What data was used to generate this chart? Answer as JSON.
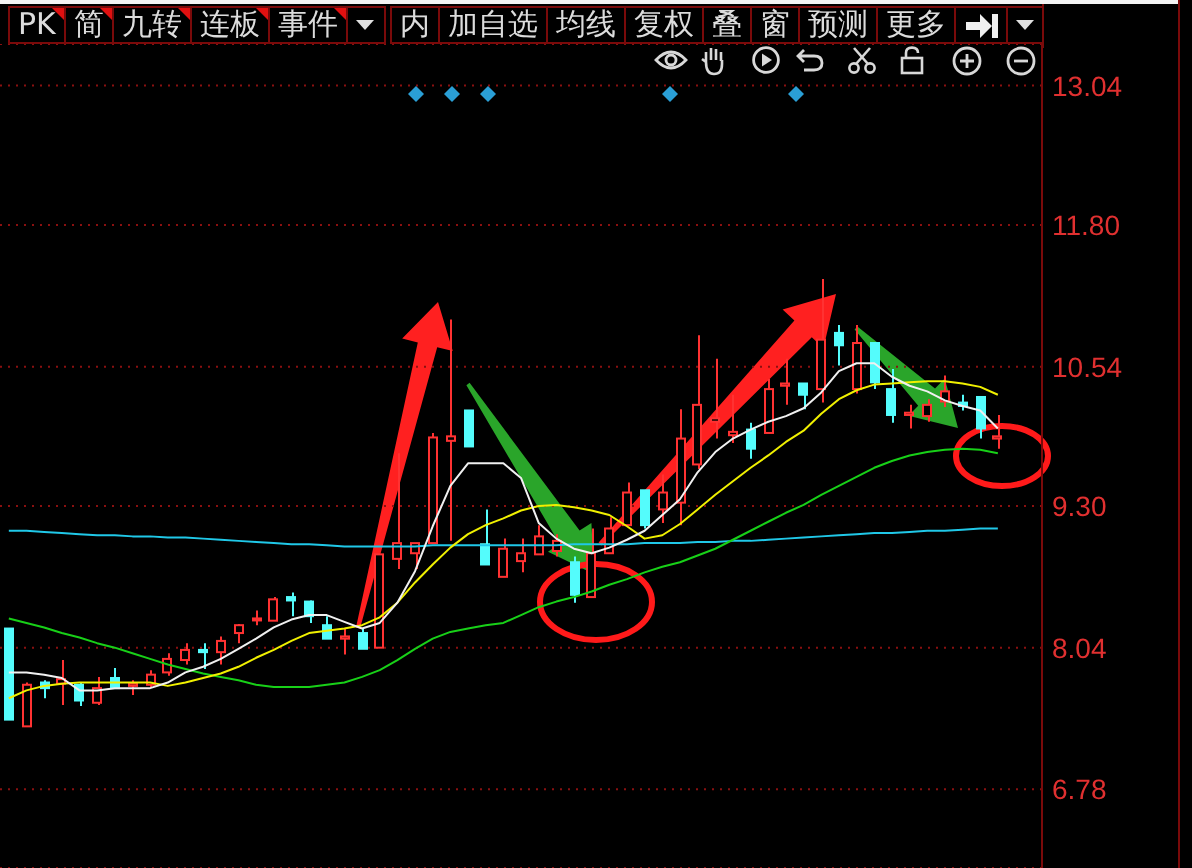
{
  "chart_data": {
    "type": "candlestick",
    "categories": [
      null,
      null,
      null,
      null,
      null,
      null,
      null,
      null,
      null,
      null,
      null,
      null,
      null,
      null,
      null,
      null,
      null,
      null,
      null,
      null,
      null,
      null,
      null,
      null,
      null,
      null,
      null,
      null,
      null,
      null,
      null,
      null,
      null,
      null,
      null,
      null,
      null,
      null,
      null,
      null,
      null,
      null,
      null,
      null,
      null,
      null,
      null,
      null,
      null,
      null,
      null,
      null,
      null,
      null,
      null,
      null,
      null,
      null,
      null
    ],
    "ohlc": [
      [
        8.21,
        8.21,
        7.4,
        7.4
      ],
      [
        7.34,
        7.73,
        7.34,
        7.71
      ],
      [
        7.73,
        7.75,
        7.59,
        7.68
      ],
      [
        7.72,
        7.93,
        7.53,
        7.76
      ],
      [
        7.71,
        7.73,
        7.52,
        7.57
      ],
      [
        7.55,
        7.78,
        7.53,
        7.68
      ],
      [
        7.77,
        7.86,
        7.68,
        7.68
      ],
      [
        7.7,
        7.75,
        7.62,
        7.72
      ],
      [
        7.71,
        7.84,
        7.69,
        7.8
      ],
      [
        7.82,
        7.99,
        7.79,
        7.94
      ],
      [
        7.93,
        8.08,
        7.89,
        8.02
      ],
      [
        8.02,
        8.08,
        7.85,
        8.0
      ],
      [
        8.0,
        8.14,
        7.89,
        8.1
      ],
      [
        8.17,
        8.25,
        8.08,
        8.24
      ],
      [
        8.29,
        8.37,
        8.24,
        8.3
      ],
      [
        8.28,
        8.49,
        8.28,
        8.47
      ],
      [
        8.49,
        8.53,
        8.32,
        8.46
      ],
      [
        8.45,
        8.46,
        8.26,
        8.32
      ],
      [
        8.24,
        8.32,
        8.12,
        8.12
      ],
      [
        8.12,
        8.21,
        7.98,
        8.14
      ],
      [
        8.17,
        8.21,
        8.03,
        8.03
      ],
      [
        8.04,
        8.87,
        8.04,
        8.87
      ],
      [
        8.83,
        9.77,
        8.74,
        8.97
      ],
      [
        8.88,
        8.97,
        8.74,
        8.97
      ],
      [
        8.97,
        9.95,
        8.97,
        9.91
      ],
      [
        9.88,
        10.96,
        8.99,
        9.92
      ],
      [
        10.15,
        10.15,
        9.83,
        9.83
      ],
      [
        8.96,
        9.27,
        8.78,
        8.78
      ],
      [
        8.67,
        9.01,
        8.67,
        8.92
      ],
      [
        8.81,
        9.01,
        8.71,
        8.88
      ],
      [
        8.87,
        9.13,
        8.87,
        9.03
      ],
      [
        8.9,
        9.05,
        8.85,
        8.99
      ],
      [
        8.8,
        8.85,
        8.44,
        8.51
      ],
      [
        8.49,
        9.1,
        8.49,
        8.88
      ],
      [
        8.88,
        9.2,
        8.88,
        9.1
      ],
      [
        9.13,
        9.51,
        9.13,
        9.42
      ],
      [
        9.44,
        9.44,
        9.1,
        9.13
      ],
      [
        9.27,
        9.58,
        9.15,
        9.42
      ],
      [
        9.33,
        10.16,
        9.13,
        9.9
      ],
      [
        9.67,
        10.82,
        9.63,
        10.2
      ],
      [
        10.05,
        10.61,
        9.9,
        10.08
      ],
      [
        9.93,
        10.29,
        9.86,
        9.96
      ],
      [
        9.98,
        10.04,
        9.72,
        9.81
      ],
      [
        9.95,
        10.43,
        9.95,
        10.34
      ],
      [
        10.37,
        10.61,
        10.2,
        10.39
      ],
      [
        10.39,
        10.39,
        10.16,
        10.29
      ],
      [
        10.34,
        11.32,
        10.22,
        10.78
      ],
      [
        10.84,
        10.91,
        10.55,
        10.73
      ],
      [
        10.34,
        10.91,
        10.3,
        10.75
      ],
      [
        10.75,
        10.75,
        10.34,
        10.4
      ],
      [
        10.34,
        10.52,
        10.04,
        10.11
      ],
      [
        10.11,
        10.2,
        9.99,
        10.13
      ],
      [
        10.1,
        10.25,
        10.05,
        10.2
      ],
      [
        10.23,
        10.46,
        10.18,
        10.32
      ],
      [
        10.22,
        10.29,
        10.15,
        10.19
      ],
      [
        10.27,
        10.27,
        9.9,
        9.99
      ],
      [
        9.9,
        10.11,
        9.81,
        9.92
      ],
      null,
      null
    ],
    "colors": [
      "#54fcfc",
      "#ff3232",
      "#54fcfc",
      "#ff3232",
      "#54fcfc",
      "#ff3232",
      "#54fcfc",
      "#ff3232",
      "#ff3232",
      "#ff3232",
      "#ff3232",
      "#54fcfc",
      "#ff3232",
      "#ff3232",
      "#ff3232",
      "#ff3232",
      "#54fcfc",
      "#54fcfc",
      "#54fcfc",
      "#ff3232",
      "#54fcfc",
      "#ff3232",
      "#ff3232",
      "#ff3232",
      "#ff3232",
      "#ff3232",
      "#54fcfc",
      "#54fcfc",
      "#ff3232",
      "#ff3232",
      "#ff3232",
      "#ff3232",
      "#54fcfc",
      "#ff3232",
      "#ff3232",
      "#ff3232",
      "#54fcfc",
      "#ff3232",
      "#ff3232",
      "#ff3232",
      "#ff3232",
      "#ff3232",
      "#54fcfc",
      "#ff3232",
      "#ff3232",
      "#54fcfc",
      "#ff3232",
      "#54fcfc",
      "#ff3232",
      "#54fcfc",
      "#54fcfc",
      "#ff3232",
      "#ff3232",
      "#ff3232",
      "#54fcfc",
      "#54fcfc",
      "#ff3232",
      null,
      null
    ],
    "series": [
      {
        "type": "line",
        "color": "#20c8e8",
        "values": [
          9.08,
          9.08,
          9.07,
          9.06,
          9.05,
          9.04,
          9.04,
          9.03,
          9.03,
          9.02,
          9.02,
          9.01,
          9.0,
          8.99,
          8.98,
          8.97,
          8.96,
          8.96,
          8.95,
          8.94,
          8.94,
          8.94,
          8.94,
          8.94,
          8.95,
          8.95,
          8.95,
          8.95,
          8.95,
          8.95,
          8.95,
          8.95,
          8.96,
          8.96,
          8.96,
          8.96,
          8.97,
          8.97,
          8.97,
          8.98,
          8.98,
          8.99,
          8.99,
          9.0,
          9.01,
          9.02,
          9.03,
          9.04,
          9.05,
          9.06,
          9.06,
          9.07,
          9.08,
          9.08,
          9.09,
          9.1,
          9.1,
          null,
          null
        ]
      },
      {
        "type": "line",
        "color": "#18d018",
        "values": [
          8.3,
          8.26,
          8.22,
          8.17,
          8.13,
          8.08,
          8.04,
          7.99,
          7.94,
          7.89,
          7.85,
          7.81,
          7.78,
          7.75,
          7.71,
          7.69,
          7.69,
          7.69,
          7.71,
          7.73,
          7.78,
          7.84,
          7.93,
          8.03,
          8.12,
          8.18,
          8.21,
          8.24,
          8.26,
          8.33,
          8.4,
          8.45,
          8.49,
          8.54,
          8.6,
          8.65,
          8.71,
          8.76,
          8.8,
          8.86,
          8.92,
          9.0,
          9.08,
          9.16,
          9.24,
          9.31,
          9.4,
          9.48,
          9.56,
          9.64,
          9.7,
          9.75,
          9.78,
          9.8,
          9.81,
          9.8,
          9.77,
          null,
          null
        ]
      },
      {
        "type": "line",
        "color": "#f0f000",
        "values": [
          7.59,
          7.66,
          7.7,
          7.72,
          7.73,
          7.73,
          7.73,
          7.73,
          7.73,
          7.7,
          7.73,
          7.77,
          7.81,
          7.87,
          7.95,
          8.02,
          8.1,
          8.17,
          8.19,
          8.21,
          8.24,
          8.31,
          8.44,
          8.62,
          8.78,
          8.93,
          9.05,
          9.13,
          9.19,
          9.26,
          9.3,
          9.31,
          9.29,
          9.26,
          9.22,
          9.12,
          9.01,
          9.04,
          9.14,
          9.27,
          9.4,
          9.52,
          9.64,
          9.75,
          9.87,
          9.97,
          10.12,
          10.25,
          10.33,
          10.38,
          10.39,
          10.4,
          10.41,
          10.41,
          10.39,
          10.36,
          10.29,
          null,
          null
        ]
      },
      {
        "type": "line",
        "color": "#f0f0f0",
        "values": [
          7.82,
          7.82,
          7.8,
          7.77,
          7.66,
          7.66,
          7.68,
          7.68,
          7.68,
          7.73,
          7.82,
          7.87,
          7.94,
          8.03,
          8.12,
          8.22,
          8.29,
          8.33,
          8.33,
          8.27,
          8.21,
          8.26,
          8.44,
          8.72,
          9.12,
          9.48,
          9.68,
          9.68,
          9.68,
          9.55,
          9.15,
          9.01,
          8.92,
          8.88,
          8.93,
          9.0,
          9.08,
          9.22,
          9.36,
          9.6,
          9.78,
          9.9,
          9.98,
          10.05,
          10.1,
          10.17,
          10.31,
          10.5,
          10.57,
          10.57,
          10.45,
          10.37,
          10.32,
          10.24,
          10.19,
          10.15,
          9.99,
          null,
          null
        ]
      }
    ],
    "ylim": [
      6.08,
      13.41
    ],
    "yticks": [
      6.78,
      8.04,
      {
        "value": 9.3,
        "label": "9.30"
      },
      10.54,
      {
        "value": 11.8,
        "label": "11.80"
      },
      13.04
    ],
    "grid": "y",
    "tick_labels": "y",
    "annotations": [
      "PK",
      "简",
      "九转",
      "连板",
      "事件",
      "内",
      "加自选",
      "均线",
      "复权",
      "叠",
      "窗",
      "预测",
      "更多"
    ]
  }
}
